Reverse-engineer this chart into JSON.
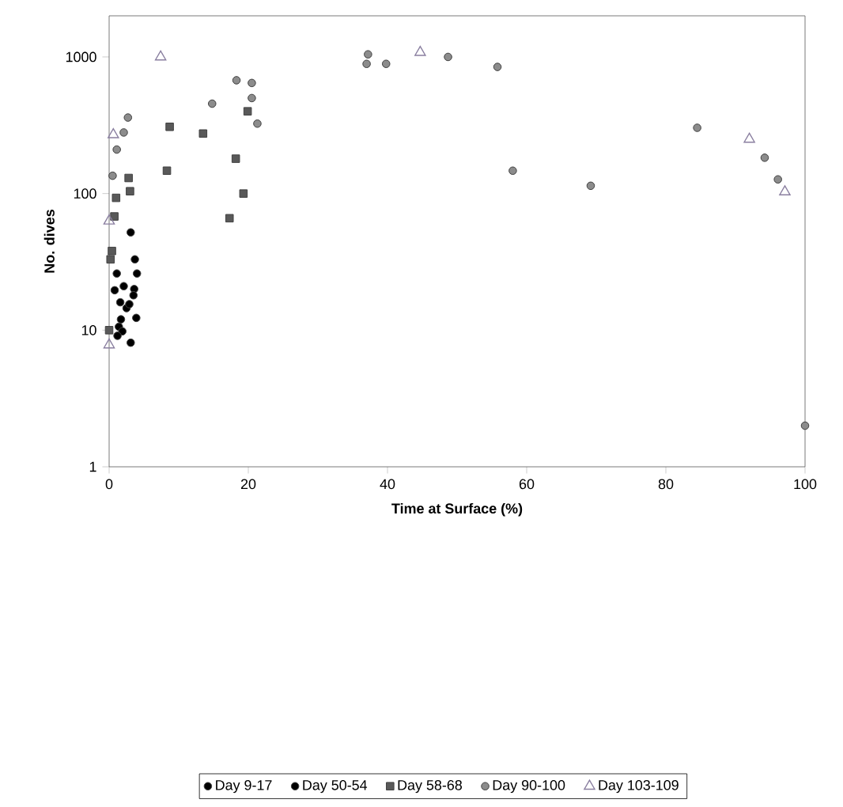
{
  "chart_data": {
    "type": "scatter",
    "xlabel": "Time at Surface (%)",
    "ylabel": "No. dives",
    "log": "y",
    "xlim": [
      0,
      100
    ],
    "ylim": [
      1,
      2000
    ],
    "xticks": [
      0,
      20,
      40,
      60,
      80,
      100
    ],
    "yticks": [
      1,
      10,
      100,
      1000
    ],
    "grid": false,
    "legend": "bottom",
    "series": [
      {
        "name": "Day 9-17",
        "color": "#000000",
        "marker": "circle",
        "x": [
          3.1,
          3.7,
          1.1,
          4.0,
          0.8,
          2.1,
          3.6,
          3.5,
          1.6
        ],
        "values": [
          52,
          33,
          26,
          26,
          19.6,
          21,
          20,
          18,
          16
        ]
      },
      {
        "name": "Day 50-54",
        "color": "#000000",
        "marker": "circle",
        "x": [
          2.5,
          2.9,
          1.7,
          1.4,
          3.9,
          1.9,
          1.2,
          3.1
        ],
        "values": [
          14.5,
          15.5,
          12,
          10.6,
          12.3,
          9.8,
          9.1,
          8.1
        ]
      },
      {
        "name": "Day 58-68",
        "color": "#595959",
        "marker": "square",
        "x": [
          8.7,
          13.5,
          19.9,
          8.3,
          2.8,
          1.0,
          3.0,
          0.75,
          18.2,
          19.3,
          17.3,
          0.4,
          0.2,
          0
        ],
        "values": [
          308,
          275,
          400,
          147,
          130,
          93,
          104,
          68,
          180,
          100,
          66,
          38,
          33,
          10
        ]
      },
      {
        "name": "Day 90-100",
        "color": "#8c8c8c",
        "marker": "circle",
        "x": [
          2.7,
          2.1,
          1.1,
          0.5,
          14.8,
          18.3,
          20.5,
          20.5,
          21.3,
          37.2,
          37.0,
          39.8,
          48.7,
          55.8,
          58.0,
          69.2,
          84.5,
          94.2,
          96.1,
          100
        ],
        "values": [
          360,
          280,
          210,
          135,
          455,
          675,
          645,
          500,
          325,
          1045,
          890,
          890,
          1000,
          845,
          147,
          114,
          303,
          183,
          127,
          2
        ]
      },
      {
        "name": "Day 103-109",
        "color": "#8a7fa0",
        "marker": "triangle",
        "x": [
          7.4,
          0.6,
          0,
          0,
          44.7,
          92,
          97.1
        ],
        "values": [
          1000,
          270,
          63,
          7.8,
          1080,
          250,
          103
        ]
      }
    ]
  }
}
